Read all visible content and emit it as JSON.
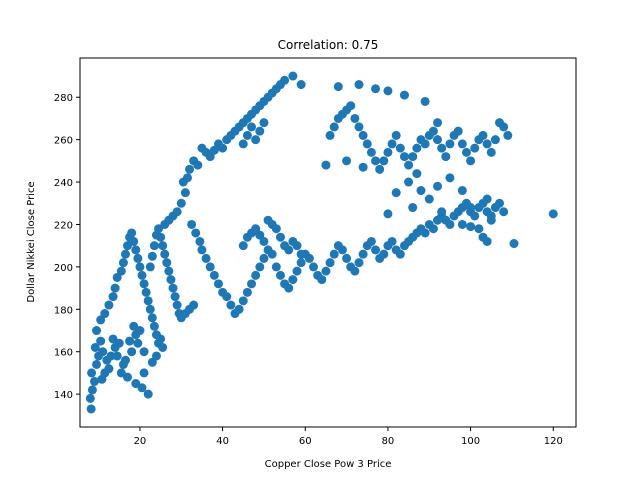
{
  "chart_data": {
    "type": "scatter",
    "title": "Correlation: 0.75",
    "xlabel": "Copper Close Pow 3 Price",
    "ylabel": "Dollar Nikkei Close Price",
    "xlim": [
      5.5,
      125.5
    ],
    "ylim": [
      124.5,
      298.5
    ],
    "xticks": [
      20,
      40,
      60,
      80,
      100,
      120
    ],
    "yticks": [
      140,
      160,
      180,
      200,
      220,
      240,
      260,
      280
    ],
    "grid": false,
    "legend": "none",
    "marker_color": "#1f77b4",
    "series": [
      {
        "points": [
          [
            8.2,
            133
          ],
          [
            8.0,
            138
          ],
          [
            8.5,
            142
          ],
          [
            9.0,
            146
          ],
          [
            8.3,
            150
          ],
          [
            9.5,
            154
          ],
          [
            10.0,
            158
          ],
          [
            9.2,
            162
          ],
          [
            10.5,
            165
          ],
          [
            11.0,
            160
          ],
          [
            12.0,
            156
          ],
          [
            11.5,
            150
          ],
          [
            10.8,
            147
          ],
          [
            12.5,
            152
          ],
          [
            13.0,
            158
          ],
          [
            14.0,
            162
          ],
          [
            13.5,
            166
          ],
          [
            15.0,
            164
          ],
          [
            14.5,
            158
          ],
          [
            16.0,
            154
          ],
          [
            15.5,
            150
          ],
          [
            17.0,
            148
          ],
          [
            16.5,
            156
          ],
          [
            18.0,
            160
          ],
          [
            17.5,
            165
          ],
          [
            19.0,
            168
          ],
          [
            18.5,
            172
          ],
          [
            20.0,
            170
          ],
          [
            19.5,
            164
          ],
          [
            21.0,
            160
          ],
          [
            9.5,
            170
          ],
          [
            10.5,
            175
          ],
          [
            11.5,
            178
          ],
          [
            12.5,
            182
          ],
          [
            13.5,
            186
          ],
          [
            14.0,
            190
          ],
          [
            14.5,
            195
          ],
          [
            15.5,
            198
          ],
          [
            16.0,
            202
          ],
          [
            16.5,
            206
          ],
          [
            17.0,
            210
          ],
          [
            17.5,
            214
          ],
          [
            18.0,
            216
          ],
          [
            18.5,
            212
          ],
          [
            19.0,
            208
          ],
          [
            19.5,
            204
          ],
          [
            20.0,
            200
          ],
          [
            20.5,
            196
          ],
          [
            21.0,
            192
          ],
          [
            21.5,
            188
          ],
          [
            22.0,
            184
          ],
          [
            22.5,
            180
          ],
          [
            23.0,
            176
          ],
          [
            23.5,
            172
          ],
          [
            24.0,
            168
          ],
          [
            24.5,
            164
          ],
          [
            25.0,
            166
          ],
          [
            25.5,
            162
          ],
          [
            19.0,
            145
          ],
          [
            20.5,
            143
          ],
          [
            22.0,
            140
          ],
          [
            21.0,
            150
          ],
          [
            23.0,
            155
          ],
          [
            24.0,
            158
          ],
          [
            22.5,
            200
          ],
          [
            23.0,
            205
          ],
          [
            23.5,
            210
          ],
          [
            24.0,
            215
          ],
          [
            24.5,
            218
          ],
          [
            25.0,
            214
          ],
          [
            25.5,
            210
          ],
          [
            26.0,
            206
          ],
          [
            26.5,
            202
          ],
          [
            27.0,
            198
          ],
          [
            27.5,
            194
          ],
          [
            28.0,
            190
          ],
          [
            28.5,
            186
          ],
          [
            29.0,
            182
          ],
          [
            29.5,
            178
          ],
          [
            30.0,
            176
          ],
          [
            31.0,
            178
          ],
          [
            32.0,
            180
          ],
          [
            33.0,
            182
          ],
          [
            26.0,
            220
          ],
          [
            27.0,
            222
          ],
          [
            28.0,
            224
          ],
          [
            29.0,
            226
          ],
          [
            30.0,
            230
          ],
          [
            31.0,
            235
          ],
          [
            30.5,
            240
          ],
          [
            31.5,
            242
          ],
          [
            32.0,
            246
          ],
          [
            33.0,
            250
          ],
          [
            34.0,
            248
          ],
          [
            32.5,
            220
          ],
          [
            33.5,
            216
          ],
          [
            34.5,
            212
          ],
          [
            35.0,
            208
          ],
          [
            36.0,
            204
          ],
          [
            37.0,
            200
          ],
          [
            38.0,
            196
          ],
          [
            39.0,
            192
          ],
          [
            40.0,
            188
          ],
          [
            41.0,
            186
          ],
          [
            42.0,
            182
          ],
          [
            43.0,
            178
          ],
          [
            44.0,
            180
          ],
          [
            45.0,
            184
          ],
          [
            46.0,
            188
          ],
          [
            47.0,
            192
          ],
          [
            48.0,
            196
          ],
          [
            49.0,
            200
          ],
          [
            50.0,
            204
          ],
          [
            51.0,
            208
          ],
          [
            52.0,
            206
          ],
          [
            53.0,
            200
          ],
          [
            54.0,
            196
          ],
          [
            55.0,
            192
          ],
          [
            56.0,
            190
          ],
          [
            57.0,
            194
          ],
          [
            58.0,
            198
          ],
          [
            59.0,
            202
          ],
          [
            60.0,
            206
          ],
          [
            61.0,
            204
          ],
          [
            62.0,
            200
          ],
          [
            63.0,
            196
          ],
          [
            64.0,
            194
          ],
          [
            65.0,
            198
          ],
          [
            66.0,
            202
          ],
          [
            67.0,
            206
          ],
          [
            68.0,
            210
          ],
          [
            69.0,
            208
          ],
          [
            70.0,
            204
          ],
          [
            71.0,
            200
          ],
          [
            72.0,
            198
          ],
          [
            73.0,
            202
          ],
          [
            74.0,
            206
          ],
          [
            75.0,
            210
          ],
          [
            76.0,
            212
          ],
          [
            77.0,
            208
          ],
          [
            78.0,
            204
          ],
          [
            79.0,
            206
          ],
          [
            80.0,
            210
          ],
          [
            81.0,
            212
          ],
          [
            82.0,
            208
          ],
          [
            83.0,
            206
          ],
          [
            84.0,
            210
          ],
          [
            85.0,
            212
          ],
          [
            86.0,
            214
          ],
          [
            87.0,
            216
          ],
          [
            88.0,
            218
          ],
          [
            89.0,
            216
          ],
          [
            90.0,
            220
          ],
          [
            91.0,
            218
          ],
          [
            92.0,
            222
          ],
          [
            93.0,
            224
          ],
          [
            94.0,
            222
          ],
          [
            95.0,
            220
          ],
          [
            96.0,
            224
          ],
          [
            97.0,
            226
          ],
          [
            98.0,
            228
          ],
          [
            99.0,
            230
          ],
          [
            100.0,
            226
          ],
          [
            101.0,
            224
          ],
          [
            102.0,
            228
          ],
          [
            103.0,
            230
          ],
          [
            104.0,
            226
          ],
          [
            105.0,
            224
          ],
          [
            106.0,
            228
          ],
          [
            107.0,
            230
          ],
          [
            108.0,
            226
          ],
          [
            110.5,
            211
          ],
          [
            120.0,
            225
          ],
          [
            103.0,
            214
          ],
          [
            104.0,
            212
          ],
          [
            102.0,
            218
          ],
          [
            45.0,
            210
          ],
          [
            46.0,
            214
          ],
          [
            47.0,
            216
          ],
          [
            48.0,
            218
          ],
          [
            49.0,
            215
          ],
          [
            50.0,
            212
          ],
          [
            51.0,
            222
          ],
          [
            52.0,
            220
          ],
          [
            53.0,
            218
          ],
          [
            54.0,
            214
          ],
          [
            55.0,
            210
          ],
          [
            56.0,
            208
          ],
          [
            57.0,
            212
          ],
          [
            58.0,
            210
          ],
          [
            59.0,
            206
          ],
          [
            35.0,
            256
          ],
          [
            36.0,
            254
          ],
          [
            37.0,
            252
          ],
          [
            38.0,
            255
          ],
          [
            39.0,
            258
          ],
          [
            40.0,
            256
          ],
          [
            41.0,
            260
          ],
          [
            42.0,
            262
          ],
          [
            43.0,
            264
          ],
          [
            44.0,
            266
          ],
          [
            45.0,
            268
          ],
          [
            46.0,
            270
          ],
          [
            47.0,
            272
          ],
          [
            48.0,
            274
          ],
          [
            49.0,
            276
          ],
          [
            50.0,
            278
          ],
          [
            51.0,
            280
          ],
          [
            52.0,
            282
          ],
          [
            53.0,
            284
          ],
          [
            54.0,
            286
          ],
          [
            55.0,
            288
          ],
          [
            57.0,
            290
          ],
          [
            59.0,
            286
          ],
          [
            45.0,
            258
          ],
          [
            46.0,
            262
          ],
          [
            47.0,
            266
          ],
          [
            48.0,
            260
          ],
          [
            49.0,
            264
          ],
          [
            50.0,
            268
          ],
          [
            66.0,
            262
          ],
          [
            67.0,
            266
          ],
          [
            68.0,
            270
          ],
          [
            69.0,
            272
          ],
          [
            70.0,
            274
          ],
          [
            71.0,
            276
          ],
          [
            72.0,
            270
          ],
          [
            73.0,
            266
          ],
          [
            74.0,
            262
          ],
          [
            75.0,
            258
          ],
          [
            76.0,
            254
          ],
          [
            77.0,
            250
          ],
          [
            78.0,
            246
          ],
          [
            79.0,
            250
          ],
          [
            80.0,
            254
          ],
          [
            81.0,
            258
          ],
          [
            82.0,
            262
          ],
          [
            83.0,
            256
          ],
          [
            84.0,
            252
          ],
          [
            85.0,
            248
          ],
          [
            86.0,
            252
          ],
          [
            87.0,
            256
          ],
          [
            88.0,
            260
          ],
          [
            89.0,
            258
          ],
          [
            90.0,
            262
          ],
          [
            91.0,
            264
          ],
          [
            92.0,
            260
          ],
          [
            93.0,
            256
          ],
          [
            94.0,
            252
          ],
          [
            95.0,
            258
          ],
          [
            96.0,
            262
          ],
          [
            97.0,
            264
          ],
          [
            98.0,
            258
          ],
          [
            99.0,
            254
          ],
          [
            100.0,
            250
          ],
          [
            101.0,
            256
          ],
          [
            102.0,
            260
          ],
          [
            103.0,
            262
          ],
          [
            104.0,
            258
          ],
          [
            105.0,
            254
          ],
          [
            106.0,
            260
          ],
          [
            107.0,
            268
          ],
          [
            108.0,
            266
          ],
          [
            109.0,
            262
          ],
          [
            68.0,
            285
          ],
          [
            73.0,
            286
          ],
          [
            77.0,
            284
          ],
          [
            80.0,
            283
          ],
          [
            84.0,
            281
          ],
          [
            89.0,
            278
          ],
          [
            92.0,
            268
          ],
          [
            65.0,
            248
          ],
          [
            70.0,
            250
          ],
          [
            85.0,
            240
          ],
          [
            88.0,
            236
          ],
          [
            90.0,
            232
          ],
          [
            92.0,
            238
          ],
          [
            95.0,
            242
          ],
          [
            98.0,
            236
          ],
          [
            86.0,
            228
          ],
          [
            80.0,
            225
          ],
          [
            93.0,
            226
          ],
          [
            87.0,
            244
          ],
          [
            74.0,
            247
          ],
          [
            100.0,
            228
          ],
          [
            104.0,
            232
          ],
          [
            82.0,
            235
          ],
          [
            98.0,
            220
          ],
          [
            100.0,
            219
          ],
          [
            105.0,
            222
          ]
        ]
      }
    ]
  }
}
